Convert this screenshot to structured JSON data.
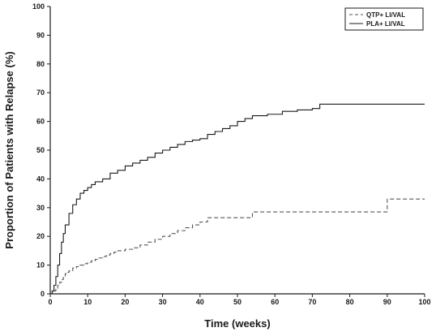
{
  "chart_data": {
    "type": "line",
    "title": "",
    "xlabel": "Time (weeks)",
    "ylabel": "Proportion of Patients with Relapse (%)",
    "xlim": [
      0,
      100
    ],
    "ylim": [
      0,
      100
    ],
    "xticks": [
      0,
      10,
      20,
      30,
      40,
      50,
      60,
      70,
      80,
      90,
      100
    ],
    "yticks": [
      0,
      10,
      20,
      30,
      40,
      50,
      60,
      70,
      80,
      90,
      100
    ],
    "grid": false,
    "legend_position": "top-right",
    "series": [
      {
        "name": "QTP+ LI/VAL",
        "style": "dashed",
        "color": "#555555",
        "x": [
          0,
          0.5,
          1,
          1.5,
          2,
          2.5,
          3,
          3.5,
          4,
          4.5,
          5,
          6,
          7,
          8,
          9,
          10,
          11,
          12,
          13,
          14,
          15,
          16,
          17,
          18,
          20,
          22,
          24,
          26,
          28,
          30,
          32,
          34,
          36,
          38,
          40,
          42,
          46,
          50,
          54,
          58,
          62,
          66,
          70,
          74,
          78,
          82,
          86,
          90,
          94,
          98,
          100
        ],
        "y": [
          0,
          0.5,
          1,
          2,
          3,
          4,
          5,
          6,
          7,
          7.5,
          8,
          9,
          9.5,
          10,
          10.5,
          11,
          11.5,
          12,
          12.5,
          13,
          13.5,
          14,
          14.5,
          15,
          15.5,
          16,
          17,
          18,
          19,
          20,
          21,
          22,
          23,
          24,
          25,
          26.5,
          26.5,
          26.5,
          28.5,
          28.5,
          28.5,
          28.5,
          28.5,
          28.5,
          28.5,
          28.5,
          28.5,
          33,
          33,
          33,
          33
        ]
      },
      {
        "name": "PLA+ LI/VAL",
        "style": "solid",
        "color": "#1a1a1a",
        "x": [
          0,
          0.5,
          1,
          1.5,
          2,
          2.5,
          3,
          3.5,
          4,
          5,
          6,
          7,
          8,
          9,
          10,
          11,
          12,
          14,
          16,
          18,
          20,
          22,
          24,
          26,
          28,
          30,
          32,
          34,
          36,
          38,
          40,
          42,
          44,
          46,
          48,
          50,
          52,
          54,
          58,
          62,
          66,
          70,
          72,
          76,
          80,
          84,
          88,
          92,
          96,
          100
        ],
        "y": [
          0,
          1,
          3,
          6,
          10,
          14,
          18,
          21,
          24,
          28,
          31,
          33,
          35,
          36,
          37,
          38,
          39,
          40,
          42,
          43,
          44.5,
          45.5,
          46.5,
          47.5,
          49,
          50,
          51,
          52,
          53,
          53.5,
          54,
          55.5,
          56.5,
          57.5,
          58.5,
          60,
          61,
          62,
          62.5,
          63.5,
          64,
          64.5,
          66,
          66,
          66,
          66,
          66,
          66,
          66,
          66
        ]
      }
    ]
  }
}
